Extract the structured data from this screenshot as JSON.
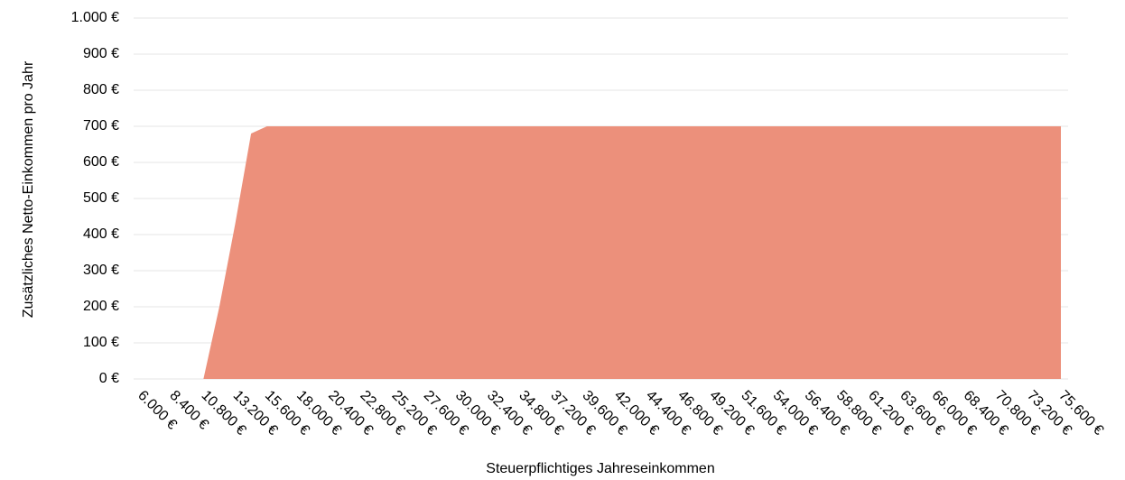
{
  "chart_data": {
    "type": "area",
    "x_label": "Steuerpflichtiges Jahreseinkommen",
    "y_label": "Zusätzliches Netto-Einkommen pro Jahr",
    "x": [
      10800,
      12000,
      13200,
      14400,
      15600,
      75600
    ],
    "values": [
      0,
      200,
      430,
      680,
      700,
      700
    ],
    "color": "#ec907b",
    "xlim": [
      6000,
      75600
    ],
    "xticks": [
      {
        "value": 6000,
        "label": "6.000 €"
      },
      {
        "value": 8400,
        "label": "8.400 €"
      },
      {
        "value": 10800,
        "label": "10.800 €"
      },
      {
        "value": 13200,
        "label": "13.200 €"
      },
      {
        "value": 15600,
        "label": "15.600 €"
      },
      {
        "value": 18000,
        "label": "18.000 €"
      },
      {
        "value": 20400,
        "label": "20.400 €"
      },
      {
        "value": 22800,
        "label": "22.800 €"
      },
      {
        "value": 25200,
        "label": "25.200 €"
      },
      {
        "value": 27600,
        "label": "27.600 €"
      },
      {
        "value": 30000,
        "label": "30.000 €"
      },
      {
        "value": 32400,
        "label": "32.400 €"
      },
      {
        "value": 34800,
        "label": "34.800 €"
      },
      {
        "value": 37200,
        "label": "37.200 €"
      },
      {
        "value": 39600,
        "label": "39.600 €"
      },
      {
        "value": 42000,
        "label": "42.000 €"
      },
      {
        "value": 44400,
        "label": "44.400 €"
      },
      {
        "value": 46800,
        "label": "46.800 €"
      },
      {
        "value": 49200,
        "label": "49.200 €"
      },
      {
        "value": 51600,
        "label": "51.600 €"
      },
      {
        "value": 54000,
        "label": "54.000 €"
      },
      {
        "value": 56400,
        "label": "56.400 €"
      },
      {
        "value": 58800,
        "label": "58.800 €"
      },
      {
        "value": 61200,
        "label": "61.200 €"
      },
      {
        "value": 63600,
        "label": "63.600 €"
      },
      {
        "value": 66000,
        "label": "66.000 €"
      },
      {
        "value": 68400,
        "label": "68.400 €"
      },
      {
        "value": 70800,
        "label": "70.800 €"
      },
      {
        "value": 73200,
        "label": "73.200 €"
      },
      {
        "value": 75600,
        "label": "75.600 €"
      }
    ],
    "ylim": [
      0,
      1000
    ],
    "yticks": [
      {
        "value": 0,
        "label": "0 €"
      },
      {
        "value": 100,
        "label": "100 €"
      },
      {
        "value": 200,
        "label": "200 €"
      },
      {
        "value": 300,
        "label": "300 €"
      },
      {
        "value": 400,
        "label": "400 €"
      },
      {
        "value": 500,
        "label": "500 €"
      },
      {
        "value": 600,
        "label": "600 €"
      },
      {
        "value": 700,
        "label": "700 €"
      },
      {
        "value": 800,
        "label": "800 €"
      },
      {
        "value": 900,
        "label": "900 €"
      },
      {
        "value": 1000,
        "label": "1.000 €"
      }
    ],
    "grid": true
  }
}
